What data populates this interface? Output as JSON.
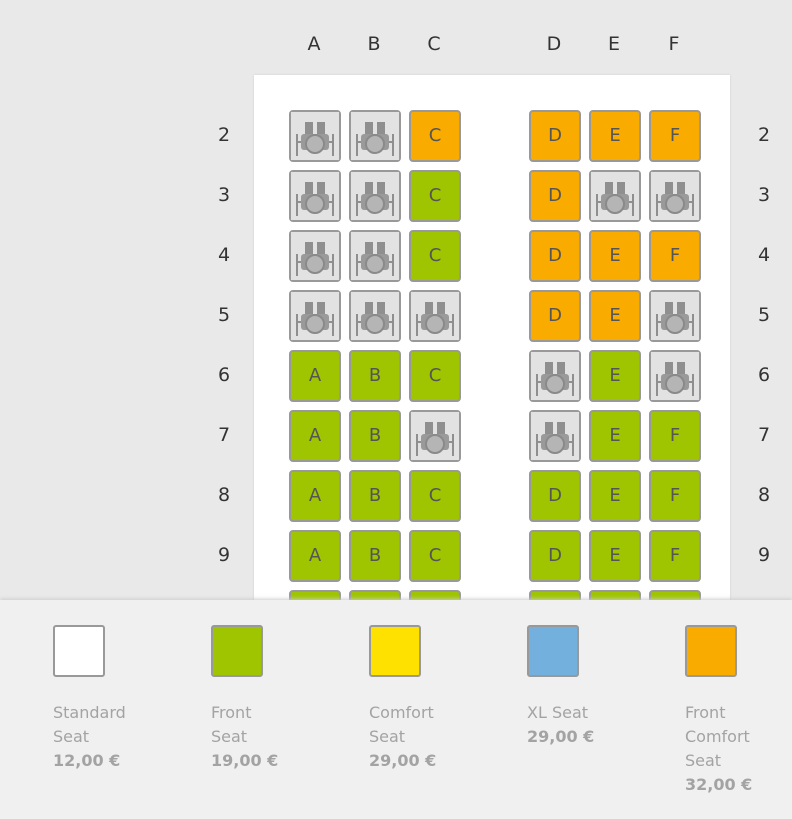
{
  "columns": [
    "A",
    "B",
    "C",
    "D",
    "E",
    "F"
  ],
  "seat_colors": {
    "front": "#9fc500",
    "front-comfort": "#f9ab00"
  },
  "rows": [
    {
      "number": "2",
      "seats": [
        {
          "type": "occupied"
        },
        {
          "type": "occupied"
        },
        {
          "type": "front-comfort",
          "label": "C"
        },
        {
          "type": "front-comfort",
          "label": "D"
        },
        {
          "type": "front-comfort",
          "label": "E"
        },
        {
          "type": "front-comfort",
          "label": "F"
        }
      ]
    },
    {
      "number": "3",
      "seats": [
        {
          "type": "occupied"
        },
        {
          "type": "occupied"
        },
        {
          "type": "front",
          "label": "C"
        },
        {
          "type": "front-comfort",
          "label": "D"
        },
        {
          "type": "occupied"
        },
        {
          "type": "occupied"
        }
      ]
    },
    {
      "number": "4",
      "seats": [
        {
          "type": "occupied"
        },
        {
          "type": "occupied"
        },
        {
          "type": "front",
          "label": "C"
        },
        {
          "type": "front-comfort",
          "label": "D"
        },
        {
          "type": "front-comfort",
          "label": "E"
        },
        {
          "type": "front-comfort",
          "label": "F"
        }
      ]
    },
    {
      "number": "5",
      "seats": [
        {
          "type": "occupied"
        },
        {
          "type": "occupied"
        },
        {
          "type": "occupied"
        },
        {
          "type": "front-comfort",
          "label": "D"
        },
        {
          "type": "front-comfort",
          "label": "E"
        },
        {
          "type": "occupied"
        }
      ]
    },
    {
      "number": "6",
      "seats": [
        {
          "type": "front",
          "label": "A"
        },
        {
          "type": "front",
          "label": "B"
        },
        {
          "type": "front",
          "label": "C"
        },
        {
          "type": "occupied"
        },
        {
          "type": "front",
          "label": "E"
        },
        {
          "type": "occupied"
        }
      ]
    },
    {
      "number": "7",
      "seats": [
        {
          "type": "front",
          "label": "A"
        },
        {
          "type": "front",
          "label": "B"
        },
        {
          "type": "occupied"
        },
        {
          "type": "occupied"
        },
        {
          "type": "front",
          "label": "E"
        },
        {
          "type": "front",
          "label": "F"
        }
      ]
    },
    {
      "number": "8",
      "seats": [
        {
          "type": "front",
          "label": "A"
        },
        {
          "type": "front",
          "label": "B"
        },
        {
          "type": "front",
          "label": "C"
        },
        {
          "type": "front",
          "label": "D"
        },
        {
          "type": "front",
          "label": "E"
        },
        {
          "type": "front",
          "label": "F"
        }
      ]
    },
    {
      "number": "9",
      "seats": [
        {
          "type": "front",
          "label": "A"
        },
        {
          "type": "front",
          "label": "B"
        },
        {
          "type": "front",
          "label": "C"
        },
        {
          "type": "front",
          "label": "D"
        },
        {
          "type": "front",
          "label": "E"
        },
        {
          "type": "front",
          "label": "F"
        }
      ]
    }
  ],
  "partial_row": {
    "seats": [
      {
        "type": "front"
      },
      {
        "type": "front"
      },
      {
        "type": "front"
      },
      {
        "type": "front"
      },
      {
        "type": "front"
      },
      {
        "type": "front"
      }
    ]
  },
  "legend": [
    {
      "label": "Standard Seat",
      "price": "12,00 €",
      "color": "#ffffff"
    },
    {
      "label": "Front Seat",
      "price": "19,00 €",
      "color": "#9fc500"
    },
    {
      "label": "Comfort Seat",
      "price": "29,00 €",
      "color": "#ffe100"
    },
    {
      "label": "XL Seat",
      "price": "29,00 €",
      "color": "#74b0de"
    },
    {
      "label": "Front Comfort Seat",
      "price": "32,00 €",
      "color": "#f9ab00"
    }
  ]
}
